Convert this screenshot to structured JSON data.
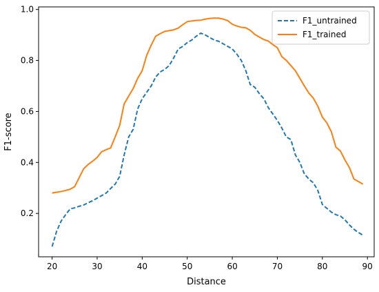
{
  "chart_data": {
    "type": "line",
    "title": "",
    "xlabel": "Distance",
    "ylabel": "F1-score",
    "xlim": [
      17,
      91.5
    ],
    "ylim": [
      0.03,
      1.01
    ],
    "xticks": [
      "20",
      "30",
      "40",
      "50",
      "60",
      "70",
      "80",
      "90"
    ],
    "yticks": [
      "0.2",
      "0.4",
      "0.6",
      "0.8",
      "1.0"
    ],
    "grid": false,
    "legend_position": "top-right",
    "x": [
      20,
      21,
      22,
      23,
      24,
      25,
      26,
      27,
      28,
      29,
      30,
      31,
      32,
      33,
      34,
      35,
      36,
      37,
      38,
      39,
      40,
      41,
      42,
      43,
      44,
      45,
      46,
      47,
      48,
      49,
      50,
      51,
      52,
      53,
      54,
      55,
      56,
      57,
      58,
      59,
      60,
      61,
      62,
      63,
      64,
      65,
      66,
      67,
      68,
      69,
      70,
      71,
      72,
      73,
      74,
      75,
      76,
      77,
      78,
      79,
      80,
      81,
      82,
      83,
      84,
      85,
      86,
      87,
      88,
      89
    ],
    "series": [
      {
        "name": "F1_untrained",
        "color": "#1f77b4",
        "style": "dashed",
        "values": [
          0.07,
          0.13,
          0.17,
          0.195,
          0.218,
          0.222,
          0.228,
          0.233,
          0.242,
          0.25,
          0.26,
          0.27,
          0.28,
          0.298,
          0.315,
          0.345,
          0.43,
          0.5,
          0.53,
          0.61,
          0.65,
          0.675,
          0.7,
          0.735,
          0.755,
          0.765,
          0.78,
          0.81,
          0.845,
          0.855,
          0.87,
          0.88,
          0.895,
          0.907,
          0.9,
          0.89,
          0.88,
          0.875,
          0.865,
          0.855,
          0.845,
          0.825,
          0.8,
          0.76,
          0.705,
          0.695,
          0.67,
          0.65,
          0.615,
          0.59,
          0.565,
          0.535,
          0.5,
          0.49,
          0.43,
          0.4,
          0.355,
          0.335,
          0.32,
          0.29,
          0.235,
          0.22,
          0.205,
          0.195,
          0.19,
          0.175,
          0.155,
          0.138,
          0.125,
          0.115
        ]
      },
      {
        "name": "F1_trained",
        "color": "#ff7f0e",
        "style": "solid",
        "values": [
          0.28,
          0.283,
          0.286,
          0.29,
          0.295,
          0.305,
          0.34,
          0.375,
          0.392,
          0.405,
          0.42,
          0.442,
          0.45,
          0.457,
          0.5,
          0.545,
          0.63,
          0.66,
          0.69,
          0.73,
          0.76,
          0.82,
          0.86,
          0.895,
          0.905,
          0.914,
          0.917,
          0.92,
          0.927,
          0.94,
          0.952,
          0.955,
          0.957,
          0.958,
          0.962,
          0.965,
          0.966,
          0.966,
          0.962,
          0.956,
          0.942,
          0.935,
          0.93,
          0.928,
          0.918,
          0.902,
          0.892,
          0.882,
          0.876,
          0.862,
          0.85,
          0.815,
          0.8,
          0.78,
          0.76,
          0.73,
          0.7,
          0.672,
          0.652,
          0.62,
          0.578,
          0.555,
          0.52,
          0.46,
          0.445,
          0.41,
          0.38,
          0.335,
          0.325,
          0.315
        ]
      }
    ]
  }
}
